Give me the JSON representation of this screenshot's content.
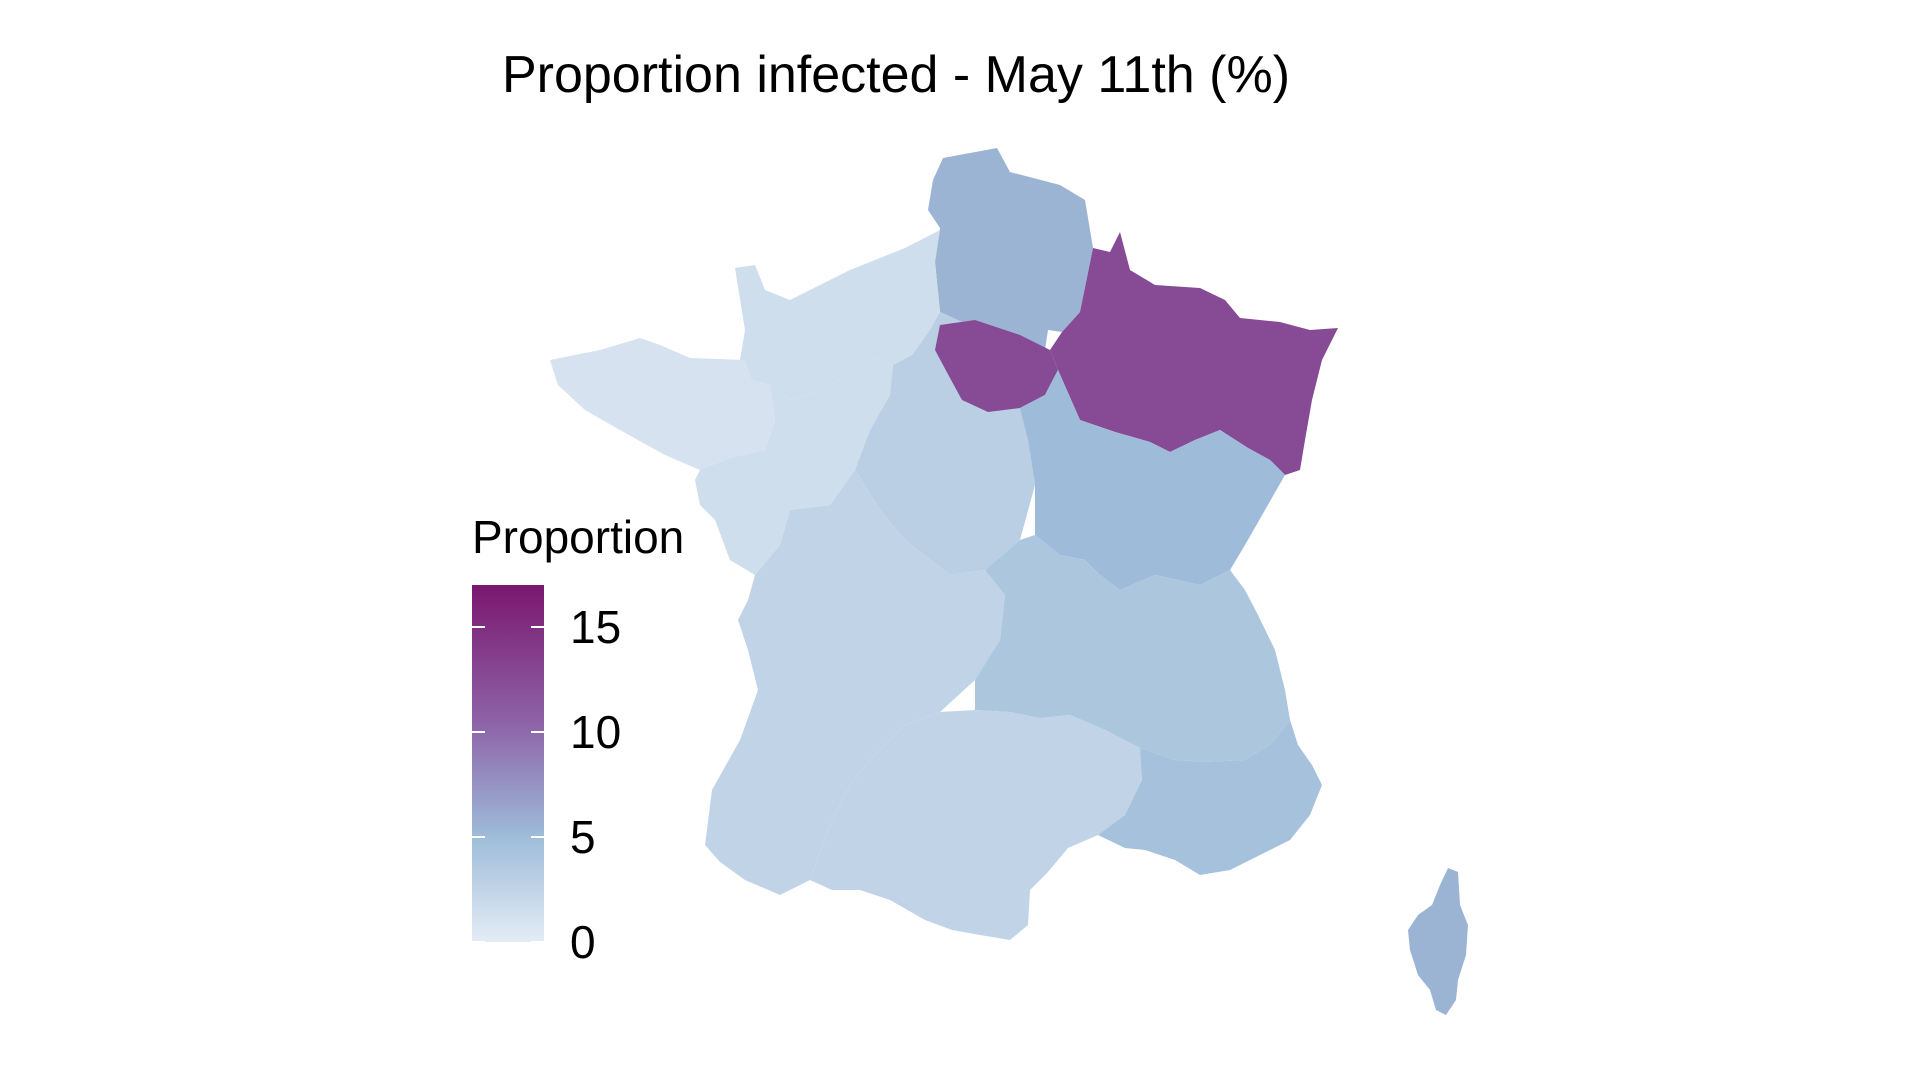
{
  "title": "Proportion infected - May 11th (%)",
  "legend": {
    "title": "Proportion",
    "ticks": [
      0,
      5,
      10,
      15
    ],
    "range": [
      0,
      17
    ],
    "colors": {
      "low": "#e4ecf5",
      "mid": "#9dbbd8",
      "high": "#7a176f",
      "midHigh": "#8e66aa"
    }
  },
  "regions": [
    {
      "id": "hauts-de-france",
      "value": 5.5
    },
    {
      "id": "grand-est",
      "value": 12.5
    },
    {
      "id": "ile-de-france",
      "value": 12.5
    },
    {
      "id": "normandie",
      "value": 1.5
    },
    {
      "id": "bretagne",
      "value": 1.0
    },
    {
      "id": "pays-de-la-loire",
      "value": 1.5
    },
    {
      "id": "centre-val-de-loire",
      "value": 3.0
    },
    {
      "id": "bourgogne-franche-comte",
      "value": 5.0
    },
    {
      "id": "nouvelle-aquitaine",
      "value": 2.5
    },
    {
      "id": "auvergne-rhone-alpes",
      "value": 4.0
    },
    {
      "id": "occitanie",
      "value": 2.5
    },
    {
      "id": "provence-alpes-cote-dazur",
      "value": 4.5
    },
    {
      "id": "corse",
      "value": 5.5
    }
  ]
}
